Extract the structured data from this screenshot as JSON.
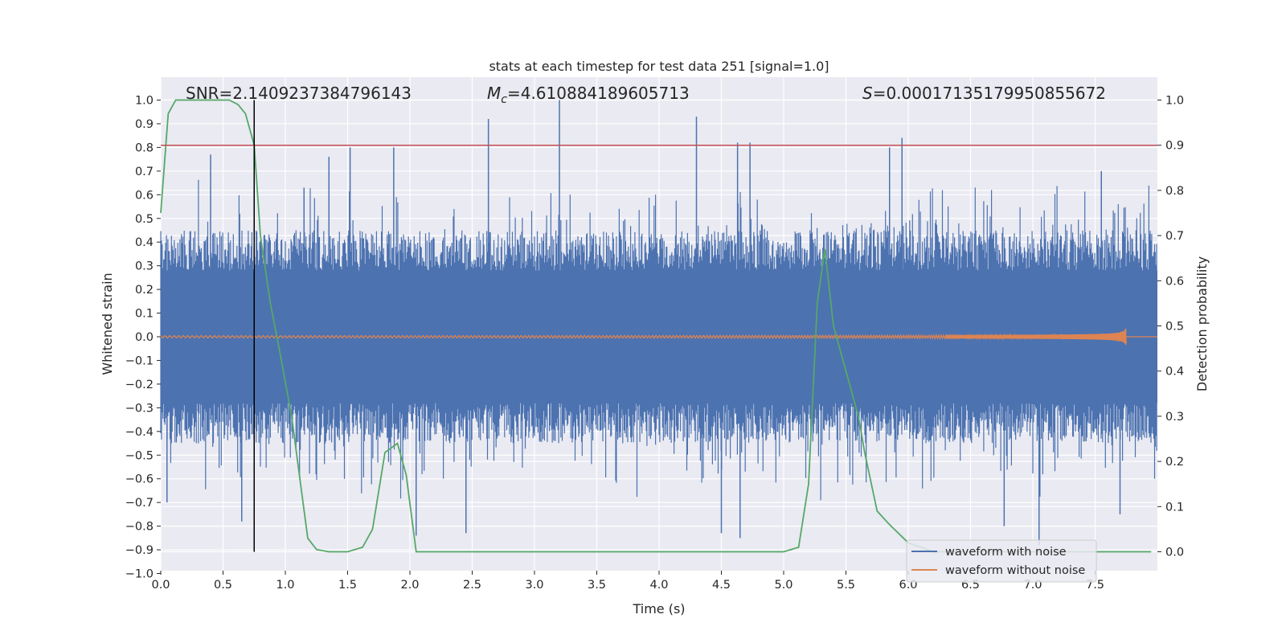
{
  "chart_data": {
    "type": "line",
    "title": "stats at each timestep for test data 251 [signal=1.0]",
    "xlabel": "Time (s)",
    "ylabel": "Whitened strain",
    "ylabel_right": "Detection probability",
    "xlim": [
      0.0,
      8.0
    ],
    "ylim": [
      -1.0,
      1.0
    ],
    "ylim_right": [
      -0.05,
      1.05
    ],
    "x_ticks": [
      0.0,
      0.5,
      1.0,
      1.5,
      2.0,
      2.5,
      3.0,
      3.5,
      4.0,
      4.5,
      5.0,
      5.5,
      6.0,
      6.5,
      7.0,
      7.5
    ],
    "x_tick_labels": [
      "0.0",
      "0.5",
      "1.0",
      "1.5",
      "2.0",
      "2.5",
      "3.0",
      "3.5",
      "4.0",
      "4.5",
      "5.0",
      "5.5",
      "6.0",
      "6.5",
      "7.0",
      "7.5"
    ],
    "y_ticks": [
      -1.0,
      -0.9,
      -0.8,
      -0.7,
      -0.6,
      -0.5,
      -0.4,
      -0.3,
      -0.2,
      -0.1,
      0.0,
      0.1,
      0.2,
      0.3,
      0.4,
      0.5,
      0.6,
      0.7,
      0.8,
      0.9,
      1.0
    ],
    "y_tick_labels": [
      "−1.0",
      "−0.9",
      "−0.8",
      "−0.7",
      "−0.6",
      "−0.5",
      "−0.4",
      "−0.3",
      "−0.2",
      "−0.1",
      "0.0",
      "0.1",
      "0.2",
      "0.3",
      "0.4",
      "0.5",
      "0.6",
      "0.7",
      "0.8",
      "0.9",
      "1.0"
    ],
    "y_right_ticks": [
      0.0,
      0.1,
      0.2,
      0.3,
      0.4,
      0.5,
      0.6,
      0.7,
      0.8,
      0.9,
      1.0
    ],
    "y_right_tick_labels": [
      "0.0",
      "0.1",
      "0.2",
      "0.3",
      "0.4",
      "0.5",
      "0.6",
      "0.7",
      "0.8",
      "0.9",
      "1.0"
    ],
    "annotations": {
      "snr": "SNR=2.1409237384796143",
      "mc_symbol": "M",
      "mc_sub": "c",
      "mc_value": "=4.610884189605713",
      "s_symbol": "S",
      "s_value": "=0.00017135179950855672"
    },
    "threshold_right": 0.9,
    "marker_time": 0.75,
    "strain_band": {
      "core_amplitude": 0.28,
      "typical_amplitude": 0.45,
      "peak_amplitude": 1.0
    },
    "strain_spikes": [
      {
        "t": 0.05,
        "v": -0.7
      },
      {
        "t": 0.4,
        "v": 0.77
      },
      {
        "t": 0.65,
        "v": -0.78
      },
      {
        "t": 0.75,
        "v": 0.9
      },
      {
        "t": 1.15,
        "v": 0.63
      },
      {
        "t": 1.35,
        "v": 0.76
      },
      {
        "t": 1.52,
        "v": 0.8
      },
      {
        "t": 1.87,
        "v": 0.8
      },
      {
        "t": 2.05,
        "v": -0.84
      },
      {
        "t": 2.45,
        "v": -0.83
      },
      {
        "t": 2.63,
        "v": 0.92
      },
      {
        "t": 3.2,
        "v": 1.0
      },
      {
        "t": 4.3,
        "v": 0.93
      },
      {
        "t": 4.5,
        "v": -0.83
      },
      {
        "t": 4.63,
        "v": 0.82
      },
      {
        "t": 4.73,
        "v": 0.82
      },
      {
        "t": 4.65,
        "v": -0.85
      },
      {
        "t": 5.85,
        "v": 0.8
      },
      {
        "t": 5.95,
        "v": 0.84
      },
      {
        "t": 6.77,
        "v": -0.8
      },
      {
        "t": 7.05,
        "v": -0.88
      },
      {
        "t": 7.55,
        "v": 0.7
      },
      {
        "t": 7.7,
        "v": -0.75
      }
    ],
    "series": [
      {
        "name": "waveform with noise",
        "axis": "left",
        "color": "#4c72b0",
        "kind": "noisy strain, amplitude mostly within ±0.5 with spikes to ±1.0"
      },
      {
        "name": "waveform without noise",
        "axis": "left",
        "color": "#dd8452",
        "kind": "chirp, amplitude ~0.005 rising to ~0.04 at merger near 7.75 s",
        "chirp_end_time": 7.75,
        "chirp_peak": 0.04
      },
      {
        "name": "detection probability",
        "axis": "right",
        "color": "#55a868",
        "x": [
          0.0,
          0.06,
          0.12,
          0.25,
          0.4,
          0.55,
          0.62,
          0.68,
          0.75,
          0.8,
          0.88,
          0.95,
          1.05,
          1.18,
          1.25,
          1.35,
          1.5,
          1.62,
          1.7,
          1.8,
          1.9,
          1.97,
          2.05,
          2.15,
          2.5,
          3.0,
          3.5,
          4.0,
          4.5,
          5.0,
          5.12,
          5.2,
          5.27,
          5.33,
          5.4,
          5.5,
          5.6,
          5.65,
          5.75,
          5.85,
          6.0,
          6.2,
          6.5,
          7.0,
          7.5,
          7.95
        ],
        "y": [
          0.75,
          0.97,
          1.0,
          1.0,
          1.0,
          1.0,
          0.99,
          0.97,
          0.9,
          0.7,
          0.55,
          0.45,
          0.3,
          0.03,
          0.005,
          0.0,
          0.0,
          0.01,
          0.05,
          0.22,
          0.24,
          0.17,
          0.0,
          0.0,
          0.0,
          0.0,
          0.0,
          0.0,
          0.0,
          0.0,
          0.01,
          0.15,
          0.55,
          0.67,
          0.5,
          0.4,
          0.3,
          0.22,
          0.09,
          0.06,
          0.02,
          0.0,
          0.0,
          0.0,
          0.0,
          0.0
        ]
      }
    ],
    "threshold_color": "#c44e52",
    "marker_color": "#000000",
    "legend": {
      "position": "bottom-right",
      "entries": [
        {
          "label": "waveform with noise",
          "color": "#4c72b0"
        },
        {
          "label": "waveform without noise",
          "color": "#dd8452"
        }
      ]
    },
    "background_color": "#eaeaf2",
    "grid": true
  }
}
